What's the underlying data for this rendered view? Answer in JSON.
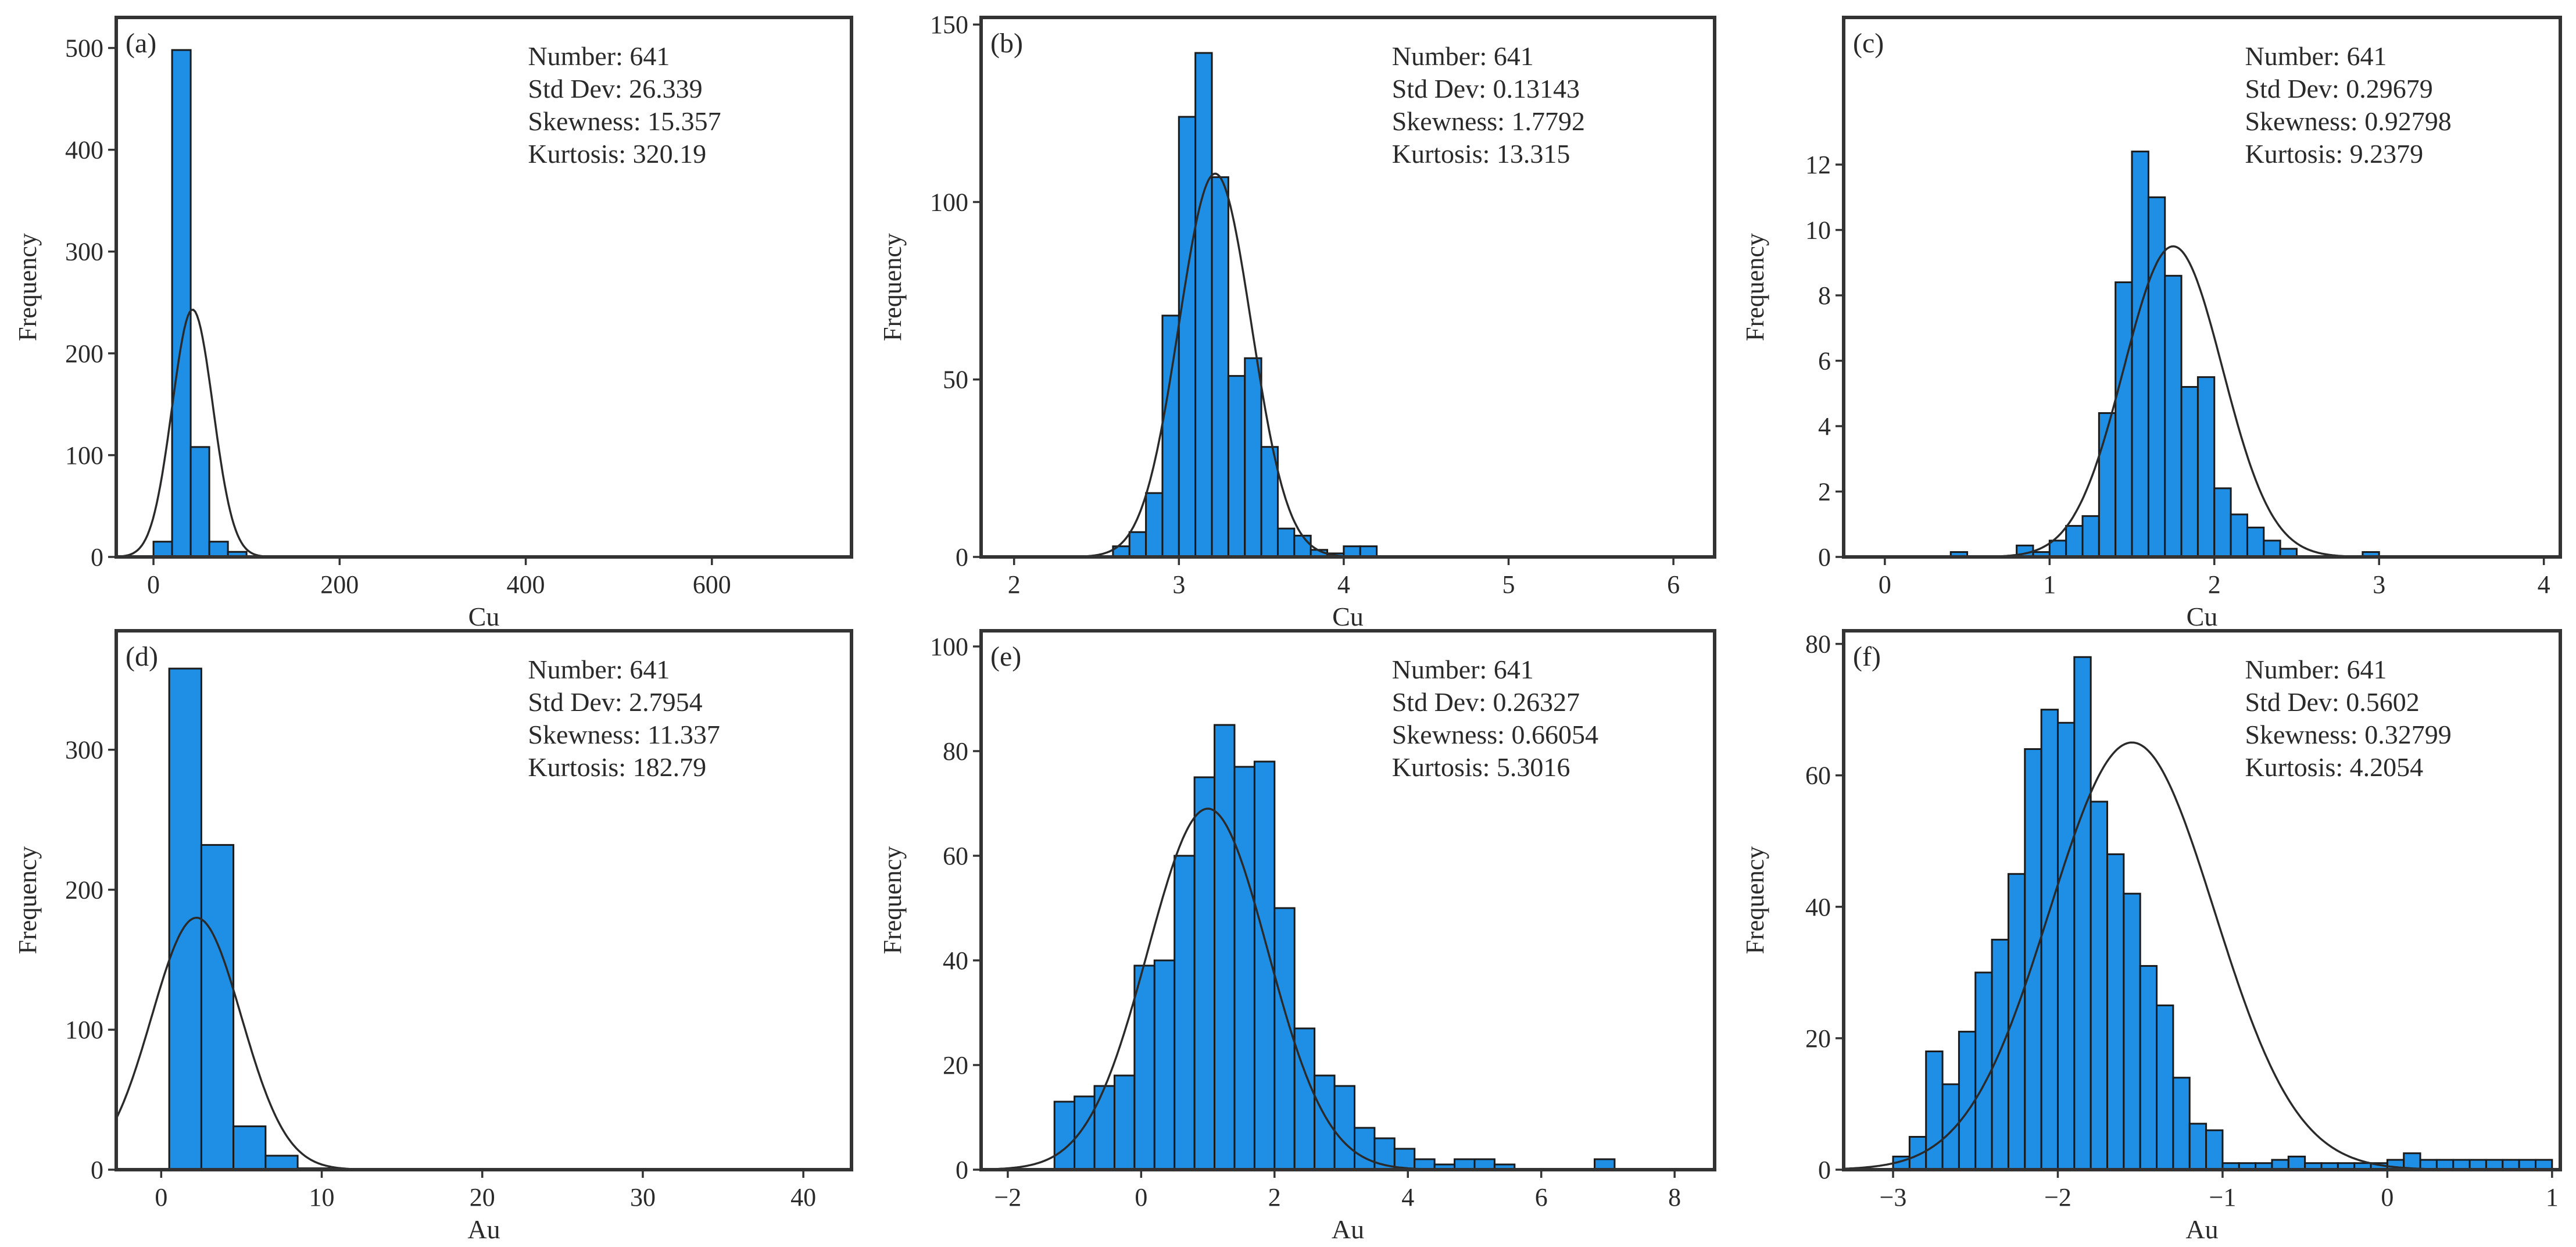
{
  "figure": {
    "bar_color": "#1f8fe6",
    "edge_color": "#1a1a1a",
    "curve_color": "#2a2a2a",
    "frame_color": "#333333"
  },
  "chart_data": [
    {
      "type": "bar",
      "panel": "(a)",
      "xlabel": "Cu",
      "ylabel": "Frequency",
      "xlim": [
        -40,
        750
      ],
      "ylim": [
        0,
        530
      ],
      "xticks": [
        0,
        200,
        400,
        600
      ],
      "yticks": [
        0,
        100,
        200,
        300,
        400,
        500
      ],
      "bars": [
        [
          0,
          20,
          15
        ],
        [
          20,
          40,
          498
        ],
        [
          40,
          60,
          108
        ],
        [
          60,
          80,
          15
        ],
        [
          80,
          100,
          5
        ]
      ],
      "fit": {
        "mean": 42,
        "sd": 22,
        "peak": 243
      },
      "stats": [
        "Number: 641",
        "Std Dev: 26.339",
        "Skewness: 15.357",
        "Kurtosis: 320.19"
      ]
    },
    {
      "type": "bar",
      "panel": "(b)",
      "xlabel": "Cu",
      "ylabel": "Frequency",
      "xlim": [
        1.8,
        6.25
      ],
      "ylim": [
        0,
        152
      ],
      "xticks": [
        2,
        3,
        4,
        5,
        6
      ],
      "yticks": [
        0,
        50,
        100,
        150
      ],
      "bars": [
        [
          2.6,
          2.7,
          3
        ],
        [
          2.7,
          2.8,
          7
        ],
        [
          2.8,
          2.9,
          18
        ],
        [
          2.9,
          3.0,
          68
        ],
        [
          3.0,
          3.1,
          124
        ],
        [
          3.1,
          3.2,
          142
        ],
        [
          3.2,
          3.3,
          107
        ],
        [
          3.3,
          3.4,
          51
        ],
        [
          3.4,
          3.5,
          56
        ],
        [
          3.5,
          3.6,
          31
        ],
        [
          3.6,
          3.7,
          8
        ],
        [
          3.7,
          3.8,
          6
        ],
        [
          3.8,
          3.9,
          2
        ],
        [
          3.9,
          4.0,
          1
        ],
        [
          4.0,
          4.1,
          3
        ],
        [
          4.1,
          4.2,
          3
        ]
      ],
      "fit": {
        "mean": 3.22,
        "sd": 0.22,
        "peak": 108
      },
      "stats": [
        "Number: 641",
        "Std Dev: 0.13143",
        "Skewness: 1.7792",
        "Kurtosis: 13.315"
      ]
    },
    {
      "type": "bar",
      "panel": "(c)",
      "xlabel": "Cu",
      "ylabel": "Frequency",
      "xlim": [
        -0.25,
        4.1
      ],
      "ylim": [
        0,
        16.5
      ],
      "xticks": [
        0,
        1,
        2,
        3,
        4
      ],
      "yticks": [
        0,
        2,
        4,
        6,
        8,
        10,
        12
      ],
      "bars": [
        [
          0.4,
          0.5,
          0.15
        ],
        [
          0.8,
          0.9,
          0.35
        ],
        [
          0.9,
          1.0,
          0.15
        ],
        [
          1.0,
          1.1,
          0.5
        ],
        [
          1.1,
          1.2,
          0.95
        ],
        [
          1.2,
          1.3,
          1.25
        ],
        [
          1.3,
          1.4,
          4.4
        ],
        [
          1.4,
          1.5,
          8.4
        ],
        [
          1.5,
          1.6,
          12.4
        ],
        [
          1.6,
          1.7,
          11.0
        ],
        [
          1.7,
          1.8,
          8.6
        ],
        [
          1.8,
          1.9,
          5.2
        ],
        [
          1.9,
          2.0,
          5.5
        ],
        [
          2.0,
          2.1,
          2.1
        ],
        [
          2.1,
          2.2,
          1.3
        ],
        [
          2.2,
          2.3,
          0.9
        ],
        [
          2.3,
          2.4,
          0.5
        ],
        [
          2.4,
          2.5,
          0.25
        ],
        [
          2.9,
          3.0,
          0.15
        ]
      ],
      "fit": {
        "mean": 1.75,
        "sd": 0.3,
        "peak": 9.5
      },
      "stats": [
        "Number: 641",
        "Std Dev: 0.29679",
        "Skewness: 0.92798",
        "Kurtosis: 9.2379"
      ]
    },
    {
      "type": "bar",
      "panel": "(d)",
      "xlabel": "Au",
      "ylabel": "Frequency",
      "xlim": [
        -2.8,
        43
      ],
      "ylim": [
        0,
        385
      ],
      "xticks": [
        0,
        10,
        20,
        30,
        40
      ],
      "yticks": [
        0,
        100,
        200,
        300
      ],
      "bars": [
        [
          0.5,
          2.5,
          358
        ],
        [
          2.5,
          4.5,
          232
        ],
        [
          4.5,
          6.5,
          31
        ],
        [
          6.5,
          8.5,
          10
        ],
        [
          8.5,
          10.5,
          1
        ]
      ],
      "fit": {
        "mean": 2.2,
        "sd": 2.8,
        "peak": 180
      },
      "stats": [
        "Number: 641",
        "Std Dev: 2.7954",
        "Skewness: 11.337",
        "Kurtosis: 182.79"
      ]
    },
    {
      "type": "bar",
      "panel": "(e)",
      "xlabel": "Au",
      "ylabel": "Frequency",
      "xlim": [
        -2.4,
        8.6
      ],
      "ylim": [
        0,
        103
      ],
      "xticks": [
        -2,
        0,
        2,
        4,
        6,
        8
      ],
      "yticks": [
        0,
        20,
        40,
        60,
        80,
        100
      ],
      "bars": [
        [
          -1.3,
          -1.0,
          13
        ],
        [
          -1.0,
          -0.7,
          14
        ],
        [
          -0.7,
          -0.4,
          16
        ],
        [
          -0.4,
          -0.1,
          18
        ],
        [
          -0.1,
          0.2,
          39
        ],
        [
          0.2,
          0.5,
          40
        ],
        [
          0.5,
          0.8,
          60
        ],
        [
          0.8,
          1.1,
          75
        ],
        [
          1.1,
          1.4,
          85
        ],
        [
          1.4,
          1.7,
          77
        ],
        [
          1.7,
          2.0,
          78
        ],
        [
          2.0,
          2.3,
          50
        ],
        [
          2.3,
          2.6,
          27
        ],
        [
          2.6,
          2.9,
          18
        ],
        [
          2.9,
          3.2,
          16
        ],
        [
          3.2,
          3.5,
          8
        ],
        [
          3.5,
          3.8,
          6
        ],
        [
          3.8,
          4.1,
          4
        ],
        [
          4.1,
          4.4,
          2
        ],
        [
          4.4,
          4.7,
          1
        ],
        [
          4.7,
          5.0,
          2
        ],
        [
          5.0,
          5.3,
          2
        ],
        [
          5.3,
          5.6,
          1
        ],
        [
          6.8,
          7.1,
          2
        ]
      ],
      "fit": {
        "mean": 1.0,
        "sd": 0.9,
        "peak": 69
      },
      "stats": [
        "Number: 641",
        "Std Dev: 0.26327",
        "Skewness: 0.66054",
        "Kurtosis: 5.3016"
      ]
    },
    {
      "type": "bar",
      "panel": "(f)",
      "xlabel": "Au",
      "ylabel": "Frequency",
      "xlim": [
        -3.3,
        1.05
      ],
      "ylim": [
        0,
        82
      ],
      "xticks": [
        -3,
        -2,
        -1,
        0,
        1
      ],
      "yticks": [
        0,
        20,
        40,
        60,
        80
      ],
      "bars": [
        [
          -3.0,
          -2.9,
          2
        ],
        [
          -2.9,
          -2.8,
          5
        ],
        [
          -2.8,
          -2.7,
          18
        ],
        [
          -2.7,
          -2.6,
          13
        ],
        [
          -2.6,
          -2.5,
          21
        ],
        [
          -2.5,
          -2.4,
          30
        ],
        [
          -2.4,
          -2.3,
          35
        ],
        [
          -2.3,
          -2.2,
          45
        ],
        [
          -2.2,
          -2.1,
          64
        ],
        [
          -2.1,
          -2.0,
          70
        ],
        [
          -2.0,
          -1.9,
          68
        ],
        [
          -1.9,
          -1.8,
          78
        ],
        [
          -1.8,
          -1.7,
          56
        ],
        [
          -1.7,
          -1.6,
          48
        ],
        [
          -1.6,
          -1.5,
          42
        ],
        [
          -1.5,
          -1.4,
          31
        ],
        [
          -1.4,
          -1.3,
          25
        ],
        [
          -1.3,
          -1.2,
          14
        ],
        [
          -1.2,
          -1.1,
          7
        ],
        [
          -1.1,
          -1.0,
          6
        ],
        [
          -1.0,
          -0.9,
          1
        ],
        [
          -0.9,
          -0.8,
          1
        ],
        [
          -0.8,
          -0.7,
          1
        ],
        [
          -0.7,
          -0.6,
          1.5
        ],
        [
          -0.6,
          -0.5,
          2
        ],
        [
          -0.5,
          -0.4,
          1
        ],
        [
          -0.4,
          -0.3,
          1
        ],
        [
          -0.3,
          -0.2,
          1
        ],
        [
          -0.2,
          -0.1,
          1
        ],
        [
          -0.1,
          0.0,
          1
        ],
        [
          0.0,
          0.1,
          1.5
        ],
        [
          0.1,
          0.2,
          2.5
        ],
        [
          0.2,
          0.3,
          1.5
        ],
        [
          0.3,
          0.4,
          1.5
        ],
        [
          0.4,
          0.5,
          1.5
        ],
        [
          0.5,
          0.6,
          1.5
        ],
        [
          0.6,
          0.7,
          1.5
        ],
        [
          0.7,
          0.8,
          1.5
        ],
        [
          0.8,
          0.9,
          1.5
        ],
        [
          0.9,
          1.0,
          1.5
        ]
      ],
      "fit": {
        "mean": -1.55,
        "sd": 0.5,
        "peak": 65
      },
      "stats": [
        "Number: 641",
        "Std Dev: 0.5602",
        "Skewness: 0.32799",
        "Kurtosis: 4.2054"
      ]
    }
  ]
}
